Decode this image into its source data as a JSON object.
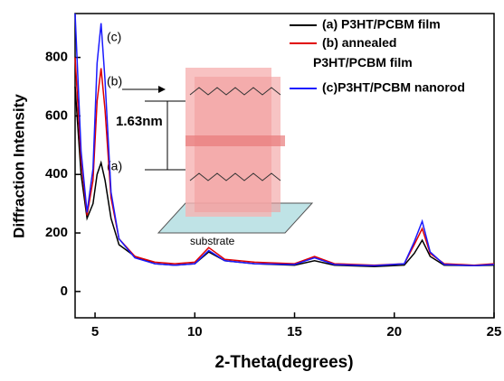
{
  "chart_data": {
    "type": "line",
    "x_label": "2-Theta(degrees)",
    "y_label": "Diffraction Intensity",
    "x": [
      4,
      4.3,
      4.6,
      4.9,
      5.1,
      5.3,
      5.5,
      5.8,
      6.2,
      7,
      8,
      9,
      10,
      10.7,
      11.5,
      13,
      15,
      16,
      17,
      19,
      20.5,
      21,
      21.4,
      21.8,
      22.5,
      24,
      25
    ],
    "series": [
      {
        "name": "(a) P3HT/PCBM film",
        "color": "#000000",
        "values": [
          700,
          400,
          250,
          300,
          400,
          440,
          380,
          250,
          160,
          120,
          95,
          90,
          95,
          135,
          105,
          95,
          90,
          105,
          90,
          85,
          90,
          130,
          175,
          120,
          90,
          88,
          90
        ]
      },
      {
        "name": "(b) annealed P3HT/PCBM film",
        "color": "#e00000",
        "values": [
          800,
          450,
          260,
          380,
          650,
          763,
          620,
          320,
          180,
          120,
          100,
          95,
          100,
          150,
          110,
          100,
          95,
          120,
          95,
          90,
          95,
          160,
          215,
          130,
          95,
          90,
          95
        ]
      },
      {
        "name": "(c)P3HT/PCBM nanorod",
        "color": "#1a1aff",
        "values": [
          950,
          480,
          270,
          420,
          780,
          917,
          720,
          340,
          180,
          115,
          95,
          90,
          95,
          140,
          105,
          95,
          92,
          115,
          92,
          88,
          95,
          170,
          240,
          135,
          92,
          88,
          92
        ]
      }
    ],
    "xlim": [
      4,
      25
    ],
    "xticks": [
      5,
      10,
      15,
      20,
      25
    ],
    "ylim": [
      -90,
      950
    ],
    "yticks": [
      0,
      200,
      400,
      600,
      800
    ],
    "annotations": [
      "(a)",
      "(b)",
      "(c)",
      "1.63nm",
      "substrate"
    ]
  }
}
